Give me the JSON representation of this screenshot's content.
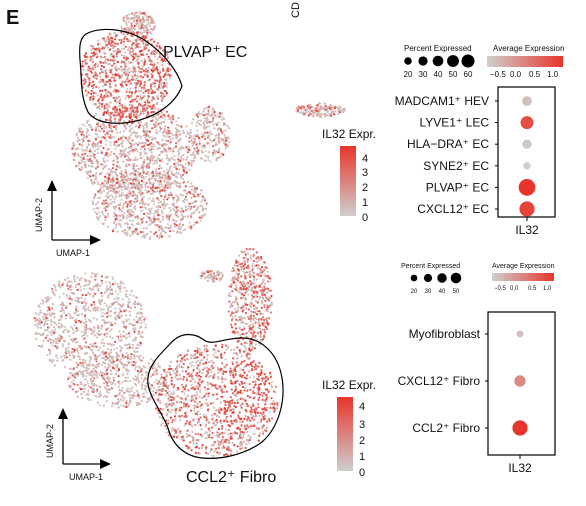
{
  "panel_letter": "E",
  "corner_text": "CD",
  "colors": {
    "low": "#cfcfcf",
    "high": "#e8352b",
    "outline": "#000000"
  },
  "top_panel": {
    "cluster_label": "PLVAP⁺ EC",
    "umap_x_label": "UMAP-1",
    "umap_y_label": "UMAP-2",
    "colorbar": {
      "title": "IL32 Expr.",
      "ticks": [
        "4",
        "3",
        "2",
        "1",
        "0"
      ]
    },
    "legend": {
      "size_title": "Percent Expressed",
      "size_ticks": [
        "20",
        "30",
        "40",
        "50",
        "60"
      ],
      "color_title": "Average Expression",
      "color_ticks": [
        "−0.5",
        "0.0",
        "0.5",
        "1.0"
      ]
    }
  },
  "bottom_panel": {
    "cluster_label": "CCL2⁺ Fibro",
    "umap_x_label": "UMAP-1",
    "umap_y_label": "UMAP-2",
    "colorbar": {
      "title": "IL32 Expr.",
      "ticks": [
        "4",
        "3",
        "2",
        "1",
        "0"
      ]
    },
    "legend": {
      "size_title": "Percent Expressed",
      "size_ticks": [
        "20",
        "30",
        "40",
        "50"
      ],
      "color_title": "Average Expression",
      "color_ticks": [
        "−0.5",
        "0.0",
        "0.5",
        "1.0"
      ]
    }
  },
  "chart_data": [
    {
      "type": "dotplot",
      "gene": "IL32",
      "categories": [
        "MADCAM1⁺ HEV",
        "LYVE1⁺ LEC",
        "HLA−DRA⁺ EC",
        "SYNE2⁺ EC",
        "PLVAP⁺ EC",
        "CXCL12⁺ EC"
      ],
      "percent_expressed": [
        20,
        35,
        18,
        12,
        58,
        48
      ],
      "average_expression": [
        -0.6,
        0.9,
        -0.7,
        -0.8,
        1.2,
        1.0
      ]
    },
    {
      "type": "dotplot",
      "gene": "IL32",
      "categories": [
        "Myofibroblast",
        "CXCL12⁺ Fibro",
        "CCL2⁺ Fibro"
      ],
      "percent_expressed": [
        10,
        27,
        48
      ],
      "average_expression": [
        -0.6,
        0.1,
        1.2
      ]
    }
  ]
}
